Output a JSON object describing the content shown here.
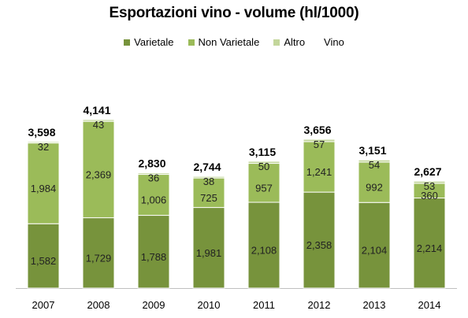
{
  "chart_data": {
    "type": "bar",
    "stacked": true,
    "title": "Esportazioni vino - volume (hl/1000)",
    "categories": [
      "2007",
      "2008",
      "2009",
      "2010",
      "2011",
      "2012",
      "2013",
      "2014"
    ],
    "series": [
      {
        "name": "Varietale",
        "color": "#77933c",
        "values": [
          1582,
          1729,
          1788,
          1981,
          2108,
          2358,
          2104,
          2214
        ]
      },
      {
        "name": "Non Varietale",
        "color": "#9bbb59",
        "values": [
          1984,
          2369,
          1006,
          725,
          957,
          1241,
          992,
          360
        ]
      },
      {
        "name": "Altro",
        "color": "#c3d69b",
        "values": [
          32,
          43,
          36,
          38,
          50,
          57,
          54,
          53
        ]
      }
    ],
    "legend_extra": "Vino",
    "totals": [
      3598,
      4141,
      2830,
      2744,
      3115,
      3656,
      3151,
      2627
    ],
    "value_labels": [
      [
        "1,582",
        "1,729",
        "1,788",
        "1,981",
        "2,108",
        "2,358",
        "2,104",
        "2,214"
      ],
      [
        "1,984",
        "2,369",
        "1,006",
        "725",
        "957",
        "1,241",
        "992",
        "360"
      ],
      [
        "32",
        "43",
        "36",
        "38",
        "50",
        "57",
        "54",
        "53"
      ]
    ],
    "total_labels": [
      "3,598",
      "4,141",
      "2,830",
      "2,744",
      "3,115",
      "3,656",
      "3,151",
      "2,627"
    ],
    "ylim": [
      0,
      4300
    ],
    "grid": false,
    "legend_position": "top"
  }
}
